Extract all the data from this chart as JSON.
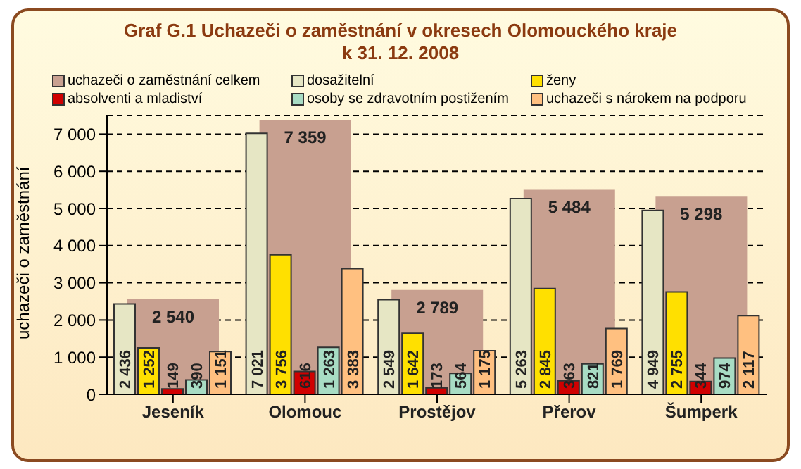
{
  "chart_data": {
    "type": "bar",
    "title": "Graf G.1 Uchazeči o zaměstnání v okresech Olomouckého kraje",
    "subtitle": "k 31. 12. 2008",
    "ylabel": "uchazeči o zaměstnání",
    "categories": [
      "Jeseník",
      "Olomouc",
      "Prostějov",
      "Přerov",
      "Šumperk"
    ],
    "series": [
      {
        "name": "uchazeči o zaměstnání celkem",
        "color": "#c8a090",
        "values": [
          2540,
          7359,
          2789,
          5484,
          5298
        ]
      },
      {
        "name": "dosažitelní",
        "color": "#e6e6c4",
        "values": [
          2436,
          7021,
          2549,
          5263,
          4949
        ]
      },
      {
        "name": "ženy",
        "color": "#ffe000",
        "values": [
          1252,
          3756,
          1642,
          2845,
          2755
        ]
      },
      {
        "name": "absolventi a mladiství",
        "color": "#d00000",
        "values": [
          149,
          616,
          173,
          363,
          344
        ]
      },
      {
        "name": "osoby se zdravotním postižením",
        "color": "#a8dcc4",
        "values": [
          390,
          1263,
          564,
          821,
          974
        ]
      },
      {
        "name": "uchazeči s nárokem na podporu",
        "color": "#ffc080",
        "values": [
          1151,
          3383,
          1175,
          1769,
          2117
        ]
      }
    ],
    "ylim": [
      0,
      7500
    ],
    "yticks": [
      {
        "value": 0,
        "label": "0"
      },
      {
        "value": 1000,
        "label": "1 000"
      },
      {
        "value": 2000,
        "label": "2 000"
      },
      {
        "value": 3000,
        "label": "3 000"
      },
      {
        "value": 4000,
        "label": "4 000"
      },
      {
        "value": 5000,
        "label": "5 000"
      },
      {
        "value": 6000,
        "label": "6 000"
      },
      {
        "value": 7000,
        "label": "7 000"
      }
    ],
    "grid": "y",
    "legend": "top",
    "data_labels": true
  }
}
